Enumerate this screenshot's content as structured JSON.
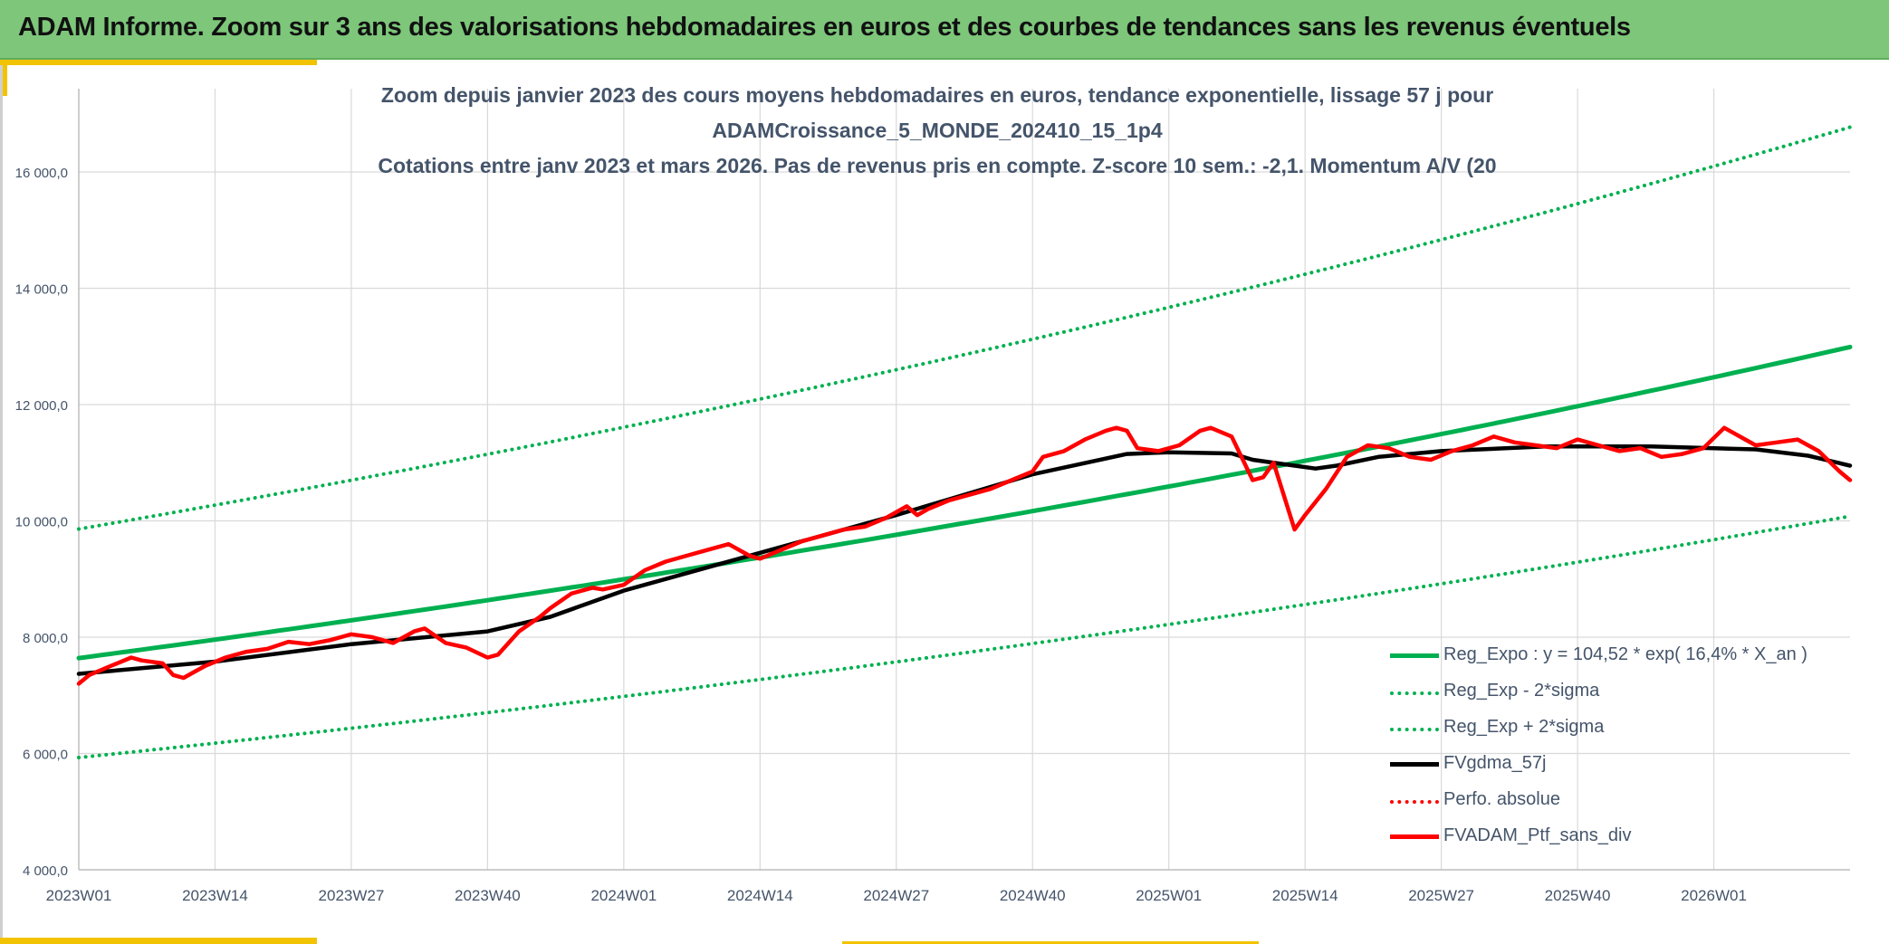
{
  "header": {
    "title": "ADAM Informe. Zoom sur 3 ans des valorisations hebdomadaires en euros et des courbes de tendances sans les revenus éventuels"
  },
  "colors": {
    "header_bg": "#7dc67a",
    "accent": "#f2c300",
    "trend": "#00b050",
    "smooth": "#000000",
    "portfolio": "#ff0000",
    "text": "#44546a"
  },
  "chart_data": {
    "type": "line",
    "title_lines": [
      "Zoom depuis janvier 2023 des cours moyens hebdomadaires en euros, tendance exponentielle, lissage 57 j pour",
      "ADAMCroissance_5_MONDE_202410_15_1p4",
      "Cotations entre janv 2023 et mars 2026. Pas de revenus pris en compte. Z-score 10 sem.: -2,1. Momentum A/V (20"
    ],
    "x_tick_labels": [
      "2023W01",
      "2023W14",
      "2023W27",
      "2023W40",
      "2024W01",
      "2024W14",
      "2024W27",
      "2024W40",
      "2025W01",
      "2025W14",
      "2025W27",
      "2025W40",
      "2026W01"
    ],
    "x_week_count": 169,
    "y_tick_labels": [
      "4 000,0",
      "6 000,0",
      "8 000,0",
      "10 000,0",
      "12 000,0",
      "14 000,0",
      "16 000,0"
    ],
    "y_ticks": [
      4000,
      6000,
      8000,
      10000,
      12000,
      14000,
      16000
    ],
    "ylim": [
      4000,
      17400
    ],
    "grid": true,
    "legend_position": "bottom-right",
    "series": [
      {
        "name": "Reg_Expo : y = 104,52 * exp( 16,4% *  X_an )",
        "style": "solid-thick",
        "color": "#00b050",
        "x": [
          0,
          169
        ],
        "values": [
          7640,
          12990
        ],
        "model": "exp"
      },
      {
        "name": "Reg_Exp - 2*sigma",
        "style": "dotted",
        "color": "#00b050",
        "x": [
          0,
          169
        ],
        "values": [
          5930,
          10080
        ],
        "model": "exp"
      },
      {
        "name": "Reg_Exp + 2*sigma",
        "style": "dotted",
        "color": "#00b050",
        "x": [
          0,
          169
        ],
        "values": [
          9860,
          16770
        ],
        "model": "exp"
      },
      {
        "name": "FVgdma_57j",
        "style": "solid",
        "color": "#000000",
        "x": [
          0,
          13,
          26,
          39,
          45,
          52,
          65,
          78,
          91,
          100,
          104,
          110,
          112,
          116,
          118,
          120,
          124,
          130,
          140,
          150,
          160,
          165,
          169
        ],
        "values": [
          7370,
          7580,
          7880,
          8100,
          8350,
          8800,
          9450,
          10100,
          10800,
          11150,
          11180,
          11160,
          11050,
          10950,
          10900,
          10950,
          11100,
          11200,
          11280,
          11280,
          11230,
          11120,
          10950
        ]
      },
      {
        "name": "Perfo. absolue",
        "style": "dotted",
        "color": "#ff0000",
        "x": [],
        "values": []
      },
      {
        "name": "FVADAM_Ptf_sans_div",
        "style": "solid",
        "color": "#ff0000",
        "x": [
          0,
          1,
          3,
          5,
          6,
          8,
          9,
          10,
          11,
          12,
          14,
          16,
          18,
          20,
          22,
          24,
          26,
          28,
          30,
          32,
          33,
          35,
          37,
          39,
          40,
          42,
          44,
          45,
          47,
          49,
          50,
          52,
          54,
          56,
          58,
          60,
          62,
          64,
          65,
          67,
          69,
          71,
          73,
          75,
          77,
          79,
          80,
          81,
          83,
          85,
          87,
          89,
          91,
          92,
          94,
          96,
          98,
          99,
          100,
          101,
          103,
          105,
          107,
          108,
          110,
          112,
          113,
          114,
          116,
          117,
          119,
          121,
          123,
          125,
          127,
          129,
          131,
          133,
          135,
          137,
          139,
          141,
          143,
          145,
          147,
          149,
          151,
          153,
          155,
          157,
          159,
          160,
          162,
          164,
          166,
          168,
          169
        ],
        "values": [
          7200,
          7350,
          7500,
          7650,
          7600,
          7550,
          7350,
          7300,
          7400,
          7500,
          7650,
          7750,
          7800,
          7920,
          7880,
          7950,
          8050,
          8000,
          7900,
          8100,
          8150,
          7900,
          7820,
          7650,
          7700,
          8100,
          8350,
          8500,
          8750,
          8850,
          8820,
          8900,
          9150,
          9300,
          9400,
          9500,
          9600,
          9400,
          9350,
          9500,
          9650,
          9750,
          9850,
          9900,
          10050,
          10250,
          10100,
          10200,
          10350,
          10450,
          10550,
          10700,
          10850,
          11100,
          11200,
          11400,
          11550,
          11600,
          11550,
          11250,
          11200,
          11300,
          11550,
          11600,
          11450,
          10700,
          10750,
          11000,
          9850,
          10100,
          10550,
          11100,
          11300,
          11250,
          11100,
          11050,
          11200,
          11300,
          11450,
          11350,
          11300,
          11250,
          11400,
          11300,
          11200,
          11250,
          11100,
          11150,
          11250,
          11600,
          11400,
          11300,
          11350,
          11400,
          11200,
          10850,
          10700
        ]
      }
    ]
  }
}
